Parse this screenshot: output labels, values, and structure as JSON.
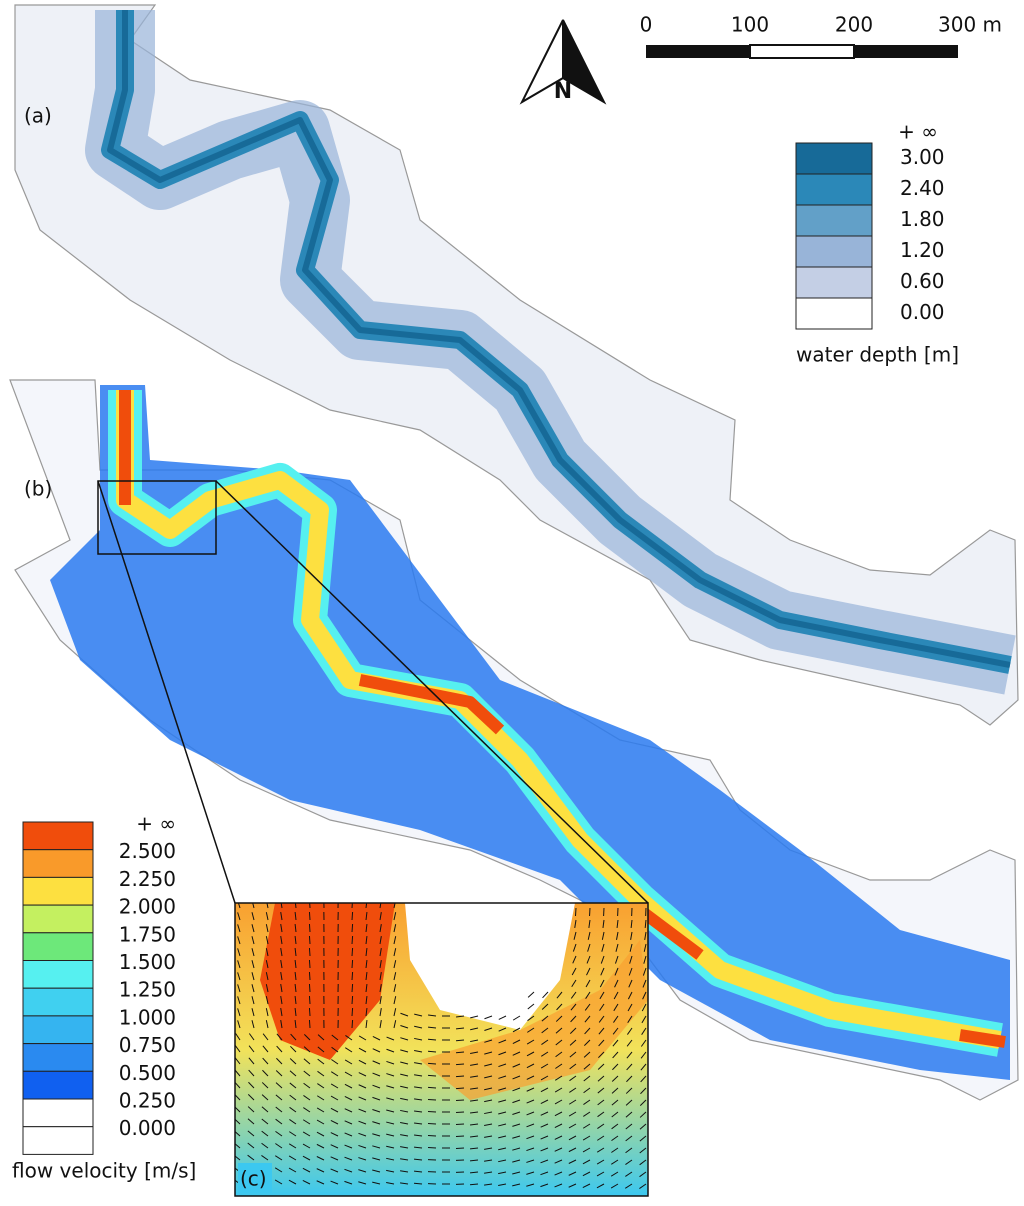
{
  "panels": [
    {
      "label": "(a)"
    },
    {
      "label": "(b)"
    },
    {
      "label": "(c)"
    }
  ],
  "north_arrow": {
    "label": "N"
  },
  "scale_bar": {
    "labels": [
      "0",
      "100",
      "200",
      "300 m"
    ]
  },
  "depth_legend": {
    "title": "water depth [m]",
    "top_label": "+ ∞",
    "classes": [
      {
        "label": "3.00",
        "color": "#176a98"
      },
      {
        "label": "2.40",
        "color": "#2b88b8"
      },
      {
        "label": "1.80",
        "color": "#62a0c8"
      },
      {
        "label": "1.20",
        "color": "#98b4d8"
      },
      {
        "label": "0.60",
        "color": "#c4cfe5"
      },
      {
        "label": "0.00",
        "color": "#ffffff"
      }
    ]
  },
  "velocity_legend": {
    "title": "flow velocity [m/s]",
    "classes": [
      {
        "label": "+ ∞",
        "color": "#f04d0c"
      },
      {
        "label": "2.500",
        "color": "#f99a2a"
      },
      {
        "label": "2.250",
        "color": "#fde040"
      },
      {
        "label": "2.000",
        "color": "#c4f060"
      },
      {
        "label": "1.750",
        "color": "#6de87a"
      },
      {
        "label": "1.500",
        "color": "#56f0f0"
      },
      {
        "label": "1.250",
        "color": "#40d0f0"
      },
      {
        "label": "1.000",
        "color": "#35b4f0"
      },
      {
        "label": "0.750",
        "color": "#2a8af0"
      },
      {
        "label": "0.500",
        "color": "#1060f0"
      },
      {
        "label": "0.250",
        "color": "#ffffff"
      },
      {
        "label": "0.000",
        "color": "#ffffff"
      }
    ]
  }
}
